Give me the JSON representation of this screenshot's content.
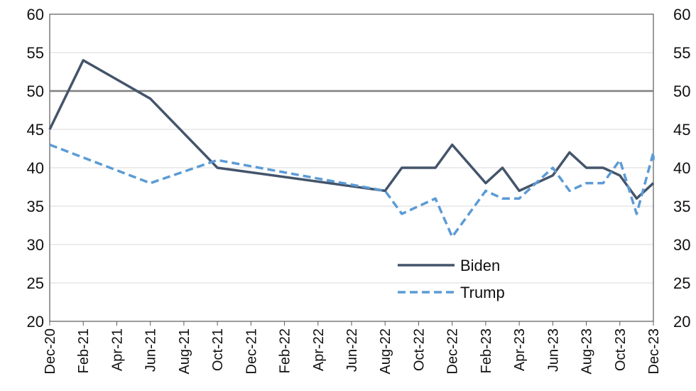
{
  "chart_data": {
    "type": "line",
    "title": "",
    "xlabel": "",
    "ylabel": "",
    "ylim": [
      20,
      60
    ],
    "yticks": [
      20,
      25,
      30,
      35,
      40,
      45,
      50,
      55,
      60
    ],
    "secondary_y_axis": true,
    "grid": true,
    "reference_line": 50,
    "x_tick_labels": [
      "Dec-20",
      "Feb-21",
      "Apr-21",
      "Jun-21",
      "Aug-21",
      "Oct-21",
      "Dec-21",
      "Feb-22",
      "Apr-22",
      "Jun-22",
      "Aug-22",
      "Oct-22",
      "Dec-22",
      "Feb-23",
      "Apr-23",
      "Jun-23",
      "Aug-23",
      "Oct-23",
      "Dec-23"
    ],
    "x_start": "2020-12",
    "x_end": "2023-12",
    "legend_position": "lower-right",
    "series": [
      {
        "name": "Biden",
        "style": "solid",
        "color": "#44546a",
        "points": [
          {
            "x": "2020-12",
            "y": 45
          },
          {
            "x": "2021-02",
            "y": 54
          },
          {
            "x": "2021-06",
            "y": 49
          },
          {
            "x": "2021-10",
            "y": 40
          },
          {
            "x": "2022-08",
            "y": 37
          },
          {
            "x": "2022-09",
            "y": 40
          },
          {
            "x": "2022-11",
            "y": 40
          },
          {
            "x": "2022-12",
            "y": 43
          },
          {
            "x": "2023-02",
            "y": 38
          },
          {
            "x": "2023-03",
            "y": 40
          },
          {
            "x": "2023-04",
            "y": 37
          },
          {
            "x": "2023-06",
            "y": 39
          },
          {
            "x": "2023-07",
            "y": 42
          },
          {
            "x": "2023-08",
            "y": 40
          },
          {
            "x": "2023-09",
            "y": 40
          },
          {
            "x": "2023-10",
            "y": 39
          },
          {
            "x": "2023-11",
            "y": 36
          },
          {
            "x": "2023-12",
            "y": 38
          }
        ]
      },
      {
        "name": "Trump",
        "style": "dashed",
        "color": "#5b9bd5",
        "points": [
          {
            "x": "2020-12",
            "y": 43
          },
          {
            "x": "2021-06",
            "y": 38
          },
          {
            "x": "2021-10",
            "y": 41
          },
          {
            "x": "2022-08",
            "y": 37
          },
          {
            "x": "2022-09",
            "y": 34
          },
          {
            "x": "2022-11",
            "y": 36
          },
          {
            "x": "2022-12",
            "y": 31
          },
          {
            "x": "2023-02",
            "y": 37
          },
          {
            "x": "2023-03",
            "y": 36
          },
          {
            "x": "2023-04",
            "y": 36
          },
          {
            "x": "2023-06",
            "y": 40
          },
          {
            "x": "2023-07",
            "y": 37
          },
          {
            "x": "2023-08",
            "y": 38
          },
          {
            "x": "2023-09",
            "y": 38
          },
          {
            "x": "2023-10",
            "y": 41
          },
          {
            "x": "2023-11",
            "y": 34
          },
          {
            "x": "2023-12",
            "y": 42
          },
          {
            "x": "2023-12",
            "y": 41
          }
        ]
      }
    ]
  }
}
